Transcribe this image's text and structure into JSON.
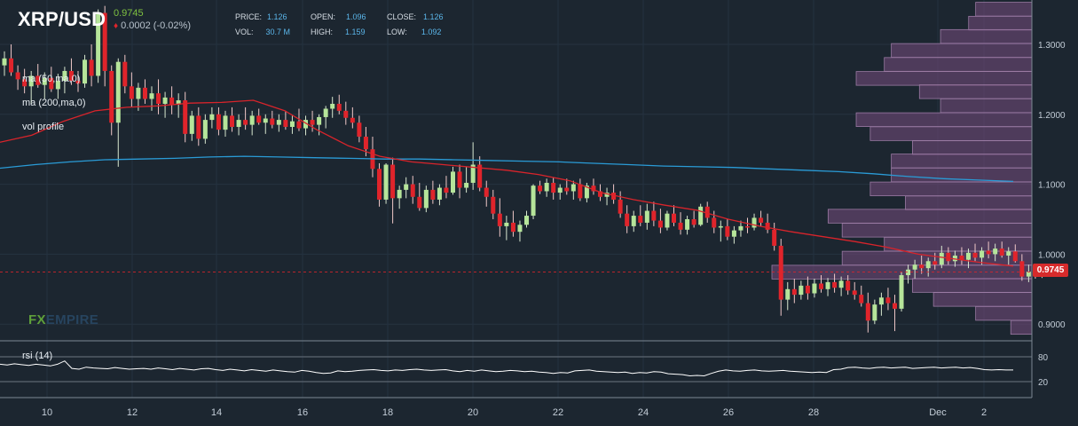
{
  "symbol": "XRP/USD",
  "last_price": "0.9745",
  "change": "0.0002 (-0.02%)",
  "stats": {
    "price_label": "PRICE:",
    "price": "1.126",
    "vol_label": "VOL:",
    "vol": "30.7 M",
    "open_label": "OPEN:",
    "open": "1.096",
    "high_label": "HIGH:",
    "high": "1.159",
    "close_label": "CLOSE:",
    "close": "1.126",
    "low_label": "LOW:",
    "low": "1.092"
  },
  "indicators": {
    "ma50": "ma (50,ma,0)",
    "ma200": "ma (200,ma,0)",
    "vol_profile": "vol profile",
    "rsi": "rsi (14)"
  },
  "watermark": {
    "fx": "FX",
    "empire": "EMPIRE"
  },
  "price_badge": "0.9745",
  "colors": {
    "background": "#1c2630",
    "up": "#b6e59a",
    "down": "#e0242b",
    "ma50": "#d8242b",
    "ma200": "#2a9bd6",
    "vol_profile": "#6f4a78",
    "rsi_line": "#ffffff"
  },
  "chart_data": [
    {
      "type": "candlestick",
      "y_axis_ticks": [
        "1.3000",
        "1.2000",
        "1.1000",
        "1.0000",
        "0.9000"
      ],
      "ylim": [
        0.88,
        1.36
      ],
      "x_axis_ticks": [
        "10",
        "12",
        "14",
        "16",
        "18",
        "20",
        "22",
        "24",
        "26",
        "28",
        "Dec",
        "2"
      ],
      "current_price": 0.9745,
      "candles_ohlc": [
        [
          1.27,
          1.29,
          1.255,
          1.28
        ],
        [
          1.28,
          1.3,
          1.255,
          1.26
        ],
        [
          1.26,
          1.27,
          1.235,
          1.25
        ],
        [
          1.25,
          1.265,
          1.23,
          1.24
        ],
        [
          1.24,
          1.262,
          1.215,
          1.255
        ],
        [
          1.255,
          1.272,
          1.238,
          1.242
        ],
        [
          1.242,
          1.26,
          1.222,
          1.252
        ],
        [
          1.252,
          1.268,
          1.232,
          1.236
        ],
        [
          1.236,
          1.258,
          1.222,
          1.248
        ],
        [
          1.248,
          1.268,
          1.23,
          1.262
        ],
        [
          1.262,
          1.28,
          1.242,
          1.248
        ],
        [
          1.248,
          1.262,
          1.232,
          1.244
        ],
        [
          1.244,
          1.285,
          1.238,
          1.278
        ],
        [
          1.278,
          1.3,
          1.24,
          1.255
        ],
        [
          1.255,
          1.35,
          1.245,
          1.345
        ],
        [
          1.345,
          1.355,
          1.24,
          1.262
        ],
        [
          1.262,
          1.27,
          1.17,
          1.188
        ],
        [
          1.188,
          1.28,
          1.125,
          1.275
        ],
        [
          1.275,
          1.285,
          1.23,
          1.24
        ],
        [
          1.24,
          1.26,
          1.21,
          1.222
        ],
        [
          1.222,
          1.245,
          1.205,
          1.238
        ],
        [
          1.238,
          1.25,
          1.215,
          1.222
        ],
        [
          1.222,
          1.24,
          1.205,
          1.23
        ],
        [
          1.23,
          1.25,
          1.2,
          1.215
        ],
        [
          1.215,
          1.232,
          1.195,
          1.224
        ],
        [
          1.224,
          1.24,
          1.2,
          1.214
        ],
        [
          1.214,
          1.23,
          1.195,
          1.22
        ],
        [
          1.22,
          1.232,
          1.16,
          1.172
        ],
        [
          1.172,
          1.205,
          1.162,
          1.198
        ],
        [
          1.198,
          1.21,
          1.155,
          1.165
        ],
        [
          1.165,
          1.2,
          1.158,
          1.192
        ],
        [
          1.192,
          1.21,
          1.18,
          1.2
        ],
        [
          1.2,
          1.21,
          1.17,
          1.178
        ],
        [
          1.178,
          1.205,
          1.168,
          1.198
        ],
        [
          1.198,
          1.21,
          1.175,
          1.182
        ],
        [
          1.182,
          1.2,
          1.17,
          1.192
        ],
        [
          1.192,
          1.21,
          1.178,
          1.185
        ],
        [
          1.185,
          1.205,
          1.17,
          1.198
        ],
        [
          1.198,
          1.208,
          1.185,
          1.188
        ],
        [
          1.188,
          1.2,
          1.172,
          1.194
        ],
        [
          1.194,
          1.205,
          1.18,
          1.185
        ],
        [
          1.185,
          1.2,
          1.175,
          1.192
        ],
        [
          1.192,
          1.205,
          1.178,
          1.182
        ],
        [
          1.182,
          1.198,
          1.172,
          1.19
        ],
        [
          1.19,
          1.208,
          1.176,
          1.18
        ],
        [
          1.18,
          1.198,
          1.17,
          1.192
        ],
        [
          1.192,
          1.205,
          1.175,
          1.185
        ],
        [
          1.185,
          1.2,
          1.17,
          1.196
        ],
        [
          1.196,
          1.212,
          1.18,
          1.208
        ],
        [
          1.208,
          1.225,
          1.195,
          1.215
        ],
        [
          1.215,
          1.228,
          1.2,
          1.205
        ],
        [
          1.205,
          1.218,
          1.185,
          1.195
        ],
        [
          1.195,
          1.21,
          1.18,
          1.188
        ],
        [
          1.188,
          1.198,
          1.16,
          1.168
        ],
        [
          1.168,
          1.182,
          1.14,
          1.15
        ],
        [
          1.15,
          1.168,
          1.11,
          1.122
        ],
        [
          1.122,
          1.13,
          1.068,
          1.078
        ],
        [
          1.078,
          1.13,
          1.072,
          1.128
        ],
        [
          1.128,
          1.138,
          1.044,
          1.08
        ],
        [
          1.08,
          1.098,
          1.065,
          1.092
        ],
        [
          1.092,
          1.11,
          1.08,
          1.1
        ],
        [
          1.1,
          1.112,
          1.072,
          1.082
        ],
        [
          1.082,
          1.102,
          1.062,
          1.066
        ],
        [
          1.066,
          1.098,
          1.06,
          1.092
        ],
        [
          1.092,
          1.105,
          1.072,
          1.078
        ],
        [
          1.078,
          1.1,
          1.07,
          1.095
        ],
        [
          1.095,
          1.112,
          1.08,
          1.088
        ],
        [
          1.088,
          1.125,
          1.085,
          1.118
        ],
        [
          1.118,
          1.128,
          1.08,
          1.095
        ],
        [
          1.095,
          1.125,
          1.088,
          1.102
        ],
        [
          1.102,
          1.16,
          1.092,
          1.128
        ],
        [
          1.128,
          1.14,
          1.09,
          1.095
        ],
        [
          1.095,
          1.105,
          1.068,
          1.082
        ],
        [
          1.082,
          1.092,
          1.05,
          1.058
        ],
        [
          1.058,
          1.08,
          1.025,
          1.04
        ],
        [
          1.04,
          1.055,
          1.02,
          1.045
        ],
        [
          1.045,
          1.062,
          1.025,
          1.032
        ],
        [
          1.032,
          1.048,
          1.018,
          1.042
        ],
        [
          1.042,
          1.062,
          1.038,
          1.055
        ],
        [
          1.055,
          1.1,
          1.05,
          1.098
        ],
        [
          1.098,
          1.105,
          1.086,
          1.09
        ],
        [
          1.09,
          1.108,
          1.082,
          1.102
        ],
        [
          1.102,
          1.11,
          1.078,
          1.088
        ],
        [
          1.088,
          1.1,
          1.078,
          1.095
        ],
        [
          1.095,
          1.108,
          1.085,
          1.09
        ],
        [
          1.09,
          1.105,
          1.078,
          1.1
        ],
        [
          1.1,
          1.108,
          1.076,
          1.08
        ],
        [
          1.08,
          1.102,
          1.074,
          1.098
        ],
        [
          1.098,
          1.108,
          1.085,
          1.09
        ],
        [
          1.09,
          1.1,
          1.076,
          1.082
        ],
        [
          1.082,
          1.095,
          1.07,
          1.088
        ],
        [
          1.088,
          1.1,
          1.072,
          1.078
        ],
        [
          1.078,
          1.09,
          1.052,
          1.058
        ],
        [
          1.058,
          1.07,
          1.03,
          1.04
        ],
        [
          1.04,
          1.062,
          1.032,
          1.055
        ],
        [
          1.055,
          1.07,
          1.04,
          1.045
        ],
        [
          1.045,
          1.072,
          1.035,
          1.062
        ],
        [
          1.062,
          1.075,
          1.04,
          1.048
        ],
        [
          1.048,
          1.065,
          1.03,
          1.038
        ],
        [
          1.038,
          1.062,
          1.034,
          1.058
        ],
        [
          1.058,
          1.07,
          1.04,
          1.045
        ],
        [
          1.045,
          1.06,
          1.028,
          1.035
        ],
        [
          1.035,
          1.055,
          1.028,
          1.05
        ],
        [
          1.05,
          1.062,
          1.038,
          1.042
        ],
        [
          1.042,
          1.072,
          1.04,
          1.068
        ],
        [
          1.068,
          1.075,
          1.045,
          1.052
        ],
        [
          1.052,
          1.062,
          1.03,
          1.038
        ],
        [
          1.038,
          1.048,
          1.018,
          1.04
        ],
        [
          1.04,
          1.05,
          1.02,
          1.025
        ],
        [
          1.025,
          1.04,
          1.015,
          1.034
        ],
        [
          1.034,
          1.048,
          1.025,
          1.04
        ],
        [
          1.04,
          1.052,
          1.03,
          1.038
        ],
        [
          1.038,
          1.058,
          1.034,
          1.052
        ],
        [
          1.052,
          1.062,
          1.04,
          1.045
        ],
        [
          1.045,
          1.058,
          1.03,
          1.035
        ],
        [
          1.035,
          1.045,
          1.005,
          1.012
        ],
        [
          1.012,
          1.022,
          0.912,
          0.935
        ],
        [
          0.935,
          0.96,
          0.92,
          0.95
        ],
        [
          0.95,
          0.965,
          0.93,
          0.942
        ],
        [
          0.942,
          0.962,
          0.935,
          0.955
        ],
        [
          0.955,
          0.968,
          0.935,
          0.944
        ],
        [
          0.944,
          0.965,
          0.938,
          0.958
        ],
        [
          0.958,
          0.97,
          0.945,
          0.95
        ],
        [
          0.95,
          0.966,
          0.94,
          0.96
        ],
        [
          0.96,
          0.972,
          0.945,
          0.952
        ],
        [
          0.952,
          0.968,
          0.94,
          0.962
        ],
        [
          0.962,
          0.97,
          0.942,
          0.948
        ],
        [
          0.948,
          0.96,
          0.935,
          0.942
        ],
        [
          0.942,
          0.955,
          0.925,
          0.93
        ],
        [
          0.93,
          0.945,
          0.888,
          0.905
        ],
        [
          0.905,
          0.935,
          0.9,
          0.928
        ],
        [
          0.928,
          0.945,
          0.912,
          0.938
        ],
        [
          0.938,
          0.952,
          0.92,
          0.93
        ],
        [
          0.93,
          0.942,
          0.89,
          0.922
        ],
        [
          0.922,
          0.975,
          0.918,
          0.97
        ],
        [
          0.97,
          0.985,
          0.958,
          0.978
        ],
        [
          0.978,
          0.992,
          0.965,
          0.985
        ],
        [
          0.985,
          0.998,
          0.972,
          0.98
        ],
        [
          0.98,
          0.995,
          0.968,
          0.99
        ],
        [
          0.99,
          1.002,
          0.978,
          0.985
        ],
        [
          0.985,
          1.012,
          0.98,
          1.002
        ],
        [
          1.002,
          1.01,
          0.985,
          0.99
        ],
        [
          0.99,
          1.005,
          0.982,
          0.998
        ],
        [
          0.998,
          1.01,
          0.985,
          0.992
        ],
        [
          0.992,
          1.008,
          0.98,
          1.002
        ],
        [
          1.002,
          1.015,
          0.99,
          0.995
        ],
        [
          0.995,
          1.01,
          0.985,
          1.005
        ],
        [
          1.005,
          1.018,
          0.994,
          1.0
        ],
        [
          1.0,
          1.015,
          0.99,
          1.008
        ],
        [
          1.008,
          1.018,
          0.995,
          0.998
        ],
        [
          0.998,
          1.01,
          0.985,
          1.004
        ],
        [
          1.004,
          1.014,
          0.988,
          0.99
        ],
        [
          0.99,
          1.0,
          0.962,
          0.968
        ],
        [
          0.968,
          0.985,
          0.96,
          0.975
        ],
        [
          0.975,
          0.985,
          0.965,
          0.972
        ],
        [
          0.972,
          0.985,
          0.966,
          0.976
        ],
        [
          0.976,
          0.984,
          0.968,
          0.9745
        ]
      ],
      "ma50": [
        1.16,
        1.17,
        1.19,
        1.205,
        1.21,
        1.212,
        1.216,
        1.217,
        1.22,
        1.205,
        1.178,
        1.155,
        1.14,
        1.132,
        1.128,
        1.124,
        1.12,
        1.114,
        1.105,
        1.088,
        1.078,
        1.07,
        1.063,
        1.05,
        1.04,
        1.032,
        1.025,
        1.018,
        1.01,
        1.0,
        0.994,
        0.988,
        0.983
      ],
      "ma200": [
        1.123,
        1.128,
        1.132,
        1.135,
        1.136,
        1.137,
        1.139,
        1.14,
        1.139,
        1.138,
        1.137,
        1.136,
        1.136,
        1.135,
        1.134,
        1.133,
        1.132,
        1.13,
        1.128,
        1.126,
        1.125,
        1.124,
        1.122,
        1.12,
        1.118,
        1.115,
        1.111,
        1.108,
        1.106,
        1.104
      ],
      "volume_profile": [
        {
          "price": 1.35,
          "volume": 8
        },
        {
          "price": 1.33,
          "volume": 9
        },
        {
          "price": 1.311,
          "volume": 13
        },
        {
          "price": 1.291,
          "volume": 20
        },
        {
          "price": 1.271,
          "volume": 21
        },
        {
          "price": 1.251,
          "volume": 25
        },
        {
          "price": 1.232,
          "volume": 16
        },
        {
          "price": 1.212,
          "volume": 13
        },
        {
          "price": 1.192,
          "volume": 25
        },
        {
          "price": 1.172,
          "volume": 23
        },
        {
          "price": 1.152,
          "volume": 17
        },
        {
          "price": 1.133,
          "volume": 20
        },
        {
          "price": 1.113,
          "volume": 20
        },
        {
          "price": 1.093,
          "volume": 23
        },
        {
          "price": 1.073,
          "volume": 18
        },
        {
          "price": 1.054,
          "volume": 29
        },
        {
          "price": 1.034,
          "volume": 27
        },
        {
          "price": 1.014,
          "volume": 21
        },
        {
          "price": 0.994,
          "volume": 27
        },
        {
          "price": 0.974,
          "volume": 37
        },
        {
          "price": 0.955,
          "volume": 17
        },
        {
          "price": 0.935,
          "volume": 14
        },
        {
          "price": 0.915,
          "volume": 8
        },
        {
          "price": 0.895,
          "volume": 3
        }
      ]
    },
    {
      "type": "line",
      "title": "rsi (14)",
      "ylim": [
        0,
        100
      ],
      "y_axis_ticks": [
        "80",
        "20"
      ],
      "values": [
        62,
        60,
        63,
        61,
        59,
        62,
        60,
        58,
        62,
        70,
        52,
        50,
        55,
        53,
        52,
        51,
        54,
        52,
        50,
        51,
        52,
        50,
        53,
        51,
        49,
        52,
        50,
        48,
        51,
        52,
        49,
        47,
        50,
        48,
        46,
        49,
        47,
        45,
        48,
        46,
        44,
        43,
        47,
        45,
        42,
        40,
        41,
        46,
        44,
        45,
        47,
        48,
        49,
        47,
        46,
        48,
        47,
        49,
        50,
        48,
        47,
        48,
        49,
        46,
        44,
        47,
        45,
        48,
        46,
        44,
        45,
        47,
        46,
        44,
        45,
        43,
        42,
        40,
        42,
        41,
        46,
        47,
        48,
        45,
        44,
        43,
        42,
        43,
        40,
        42,
        41,
        44,
        43,
        39,
        38,
        37,
        34,
        35,
        34,
        40,
        45,
        48,
        46,
        45,
        47,
        48,
        46,
        45,
        46,
        47,
        45,
        44,
        43,
        42,
        43,
        42,
        49,
        50,
        54,
        55,
        53,
        52,
        54,
        55,
        53,
        54,
        55,
        52,
        53,
        54,
        55,
        53,
        54,
        55,
        53,
        54,
        52,
        49,
        48,
        49,
        48,
        48
      ]
    }
  ]
}
